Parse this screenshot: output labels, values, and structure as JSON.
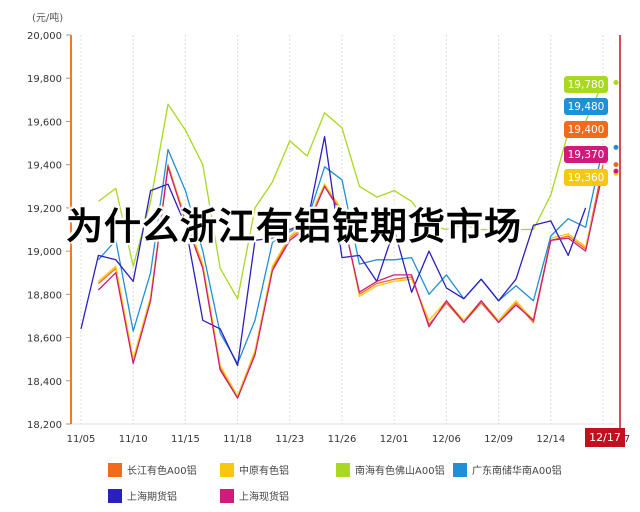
{
  "overlay_title": "为什么浙江有铝锭期货市场",
  "chart_data": {
    "type": "line",
    "title": "",
    "xlabel": "",
    "ylabel": "(元/吨)",
    "ylim": [
      18200,
      20000
    ],
    "yticks": [
      18200,
      18400,
      18600,
      18800,
      19000,
      19200,
      19400,
      19600,
      19800,
      20000
    ],
    "ytick_labels": [
      "18,200",
      "18,400",
      "18,600",
      "18,800",
      "19,000",
      "19,200",
      "19,400",
      "19,600",
      "19,800",
      "20,000"
    ],
    "xtick_labels": [
      "11/05",
      "11/10",
      "11/15",
      "11/18",
      "11/23",
      "11/26",
      "12/01",
      "12/06",
      "12/09",
      "12/14",
      "12/17"
    ],
    "xtick_index": [
      0,
      3,
      6,
      9,
      12,
      15,
      18,
      21,
      24,
      27,
      30
    ],
    "grid": {
      "vertical": true,
      "style": "dotted"
    },
    "legend_position": "bottom",
    "highlight_x_label": "12/17",
    "series": [
      {
        "name": "长江有色A00铝",
        "color": "#f26b1d",
        "values": [
          null,
          18850,
          18920,
          18490,
          18780,
          19400,
          19150,
          18930,
          18460,
          18320,
          18530,
          18920,
          19060,
          19120,
          19300,
          19180,
          18800,
          18850,
          18870,
          18880,
          18660,
          18760,
          18670,
          18760,
          18670,
          18760,
          18670,
          19050,
          19070,
          19010,
          19400
        ]
      },
      {
        "name": "中原有色铝",
        "color": "#f6c90e",
        "values": [
          null,
          18860,
          18930,
          18500,
          18790,
          19390,
          19160,
          18940,
          18470,
          18330,
          18540,
          18930,
          19070,
          19130,
          19310,
          19190,
          18790,
          18840,
          18860,
          18870,
          18680,
          18770,
          18680,
          18770,
          18680,
          18770,
          18680,
          19060,
          19080,
          19020,
          19360
        ]
      },
      {
        "name": "南海有色佛山A00铝",
        "color": "#a8d81f",
        "values": [
          null,
          19230,
          19290,
          18930,
          19230,
          19680,
          19560,
          19400,
          18920,
          18780,
          19200,
          19320,
          19510,
          19440,
          19640,
          19570,
          19300,
          19250,
          19280,
          19230,
          19120,
          19100,
          19120,
          19100,
          19100,
          19100,
          19100,
          19260,
          19550,
          19600,
          19780
        ]
      },
      {
        "name": "广东南储华南A00铝",
        "color": "#1f8fd6",
        "values": [
          null,
          18960,
          19050,
          18630,
          18900,
          19470,
          19280,
          19000,
          18620,
          18480,
          18680,
          19040,
          19090,
          19140,
          19390,
          19330,
          18940,
          18960,
          18960,
          18970,
          18800,
          18890,
          18780,
          18870,
          18770,
          18840,
          18770,
          19070,
          19150,
          19110,
          19480
        ]
      },
      {
        "name": "上海期货铝",
        "color": "#2a1fbf",
        "values": [
          18640,
          18980,
          18960,
          18860,
          19280,
          19310,
          19120,
          18680,
          18640,
          18470,
          19050,
          19060,
          19100,
          19130,
          19530,
          18970,
          18980,
          18860,
          19100,
          18810,
          19000,
          18830,
          18780,
          18870,
          18770,
          18870,
          19120,
          19140,
          18980,
          19200,
          null
        ]
      },
      {
        "name": "上海现货铝",
        "color": "#d01b7c",
        "values": [
          null,
          18820,
          18900,
          18480,
          18770,
          19390,
          19140,
          18920,
          18450,
          18320,
          18520,
          18910,
          19050,
          19110,
          19300,
          19170,
          18810,
          18860,
          18890,
          18890,
          18650,
          18770,
          18670,
          18770,
          18670,
          18750,
          18680,
          19050,
          19060,
          19000,
          19370
        ]
      }
    ],
    "last_value_tags": [
      {
        "label": "19,780",
        "series": "南海有色佛山A00铝",
        "color": "#a8d81f"
      },
      {
        "label": "19,480",
        "series": "广东南储华南A00铝",
        "color": "#1f8fd6"
      },
      {
        "label": "19,400",
        "series": "长江有色A00铝",
        "color": "#f26b1d"
      },
      {
        "label": "19,370",
        "series": "上海现货铝",
        "color": "#d01b7c"
      },
      {
        "label": "19,360",
        "series": "中原有色铝",
        "color": "#f6c90e"
      }
    ]
  }
}
